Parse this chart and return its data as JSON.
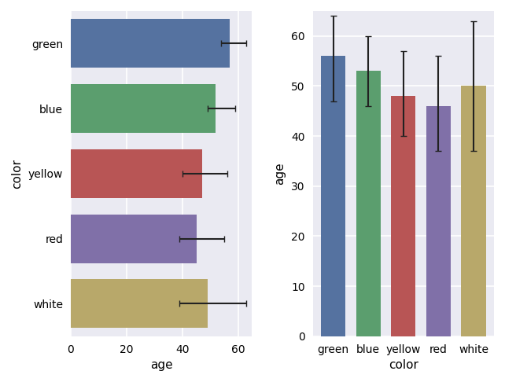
{
  "colors": [
    "green",
    "blue",
    "yellow",
    "red",
    "white"
  ],
  "bar_colors": [
    "#5572a0",
    "#5b9e6e",
    "#b85555",
    "#8070a8",
    "#b8a86a"
  ],
  "left_values": [
    57,
    52,
    47,
    45,
    49
  ],
  "left_ci_err_low": [
    3,
    3,
    7,
    6,
    10
  ],
  "left_ci_err_high": [
    6,
    7,
    9,
    10,
    14
  ],
  "right_values": [
    56,
    53,
    48,
    46,
    50
  ],
  "right_ci_err_low": [
    9,
    7,
    8,
    9,
    13
  ],
  "right_ci_err_high": [
    8,
    7,
    9,
    10,
    13
  ],
  "left_xlim": [
    0,
    65
  ],
  "left_xticks": [
    0,
    20,
    40,
    60
  ],
  "right_ylim": [
    0,
    65
  ],
  "right_yticks": [
    0,
    10,
    20,
    30,
    40,
    50,
    60
  ],
  "left_xlabel": "age",
  "left_ylabel": "color",
  "right_xlabel": "color",
  "right_ylabel": "age",
  "background_color": "#ffffff",
  "grid_color": "#ffffff",
  "axes_bg": "#eaeaf2"
}
